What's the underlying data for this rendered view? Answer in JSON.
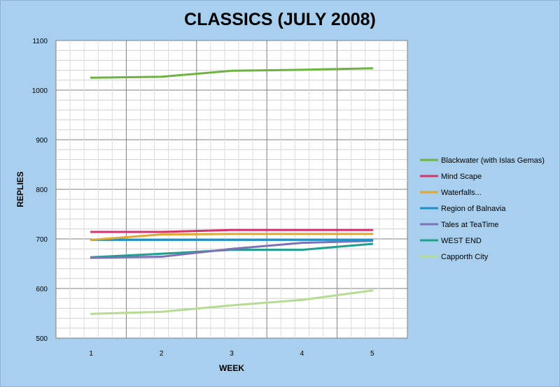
{
  "chart_data": {
    "type": "line",
    "title": "CLASSICS (JULY 2008)",
    "xlabel": "WEEK",
    "ylabel": "REPLIES",
    "x": [
      1,
      2,
      3,
      4,
      5
    ],
    "ylim": [
      500,
      1100
    ],
    "yticks": [
      500,
      600,
      700,
      800,
      900,
      1000,
      1100
    ],
    "grid": true,
    "legend_position": "right",
    "series": [
      {
        "name": "Blackwater (with Islas Gemas)",
        "color": "#6db33f",
        "values": [
          1025,
          1027,
          1039,
          1041,
          1044
        ]
      },
      {
        "name": "Mind Scape",
        "color": "#d6336c",
        "values": [
          714,
          714,
          718,
          718,
          718
        ]
      },
      {
        "name": "Waterfalls...",
        "color": "#e0a830",
        "values": [
          698,
          709,
          710,
          710,
          710
        ]
      },
      {
        "name": "Region of Balnavia",
        "color": "#1f8fc4",
        "values": [
          698,
          698,
          698,
          698,
          698
        ]
      },
      {
        "name": "Tales at TeaTime",
        "color": "#7d72b8",
        "values": [
          662,
          664,
          680,
          692,
          696
        ]
      },
      {
        "name": "WEST END",
        "color": "#1fa08e",
        "values": [
          663,
          670,
          678,
          678,
          690
        ]
      },
      {
        "name": "Capporth City",
        "color": "#b5dc92",
        "values": [
          549,
          553,
          566,
          577,
          596
        ]
      }
    ]
  }
}
